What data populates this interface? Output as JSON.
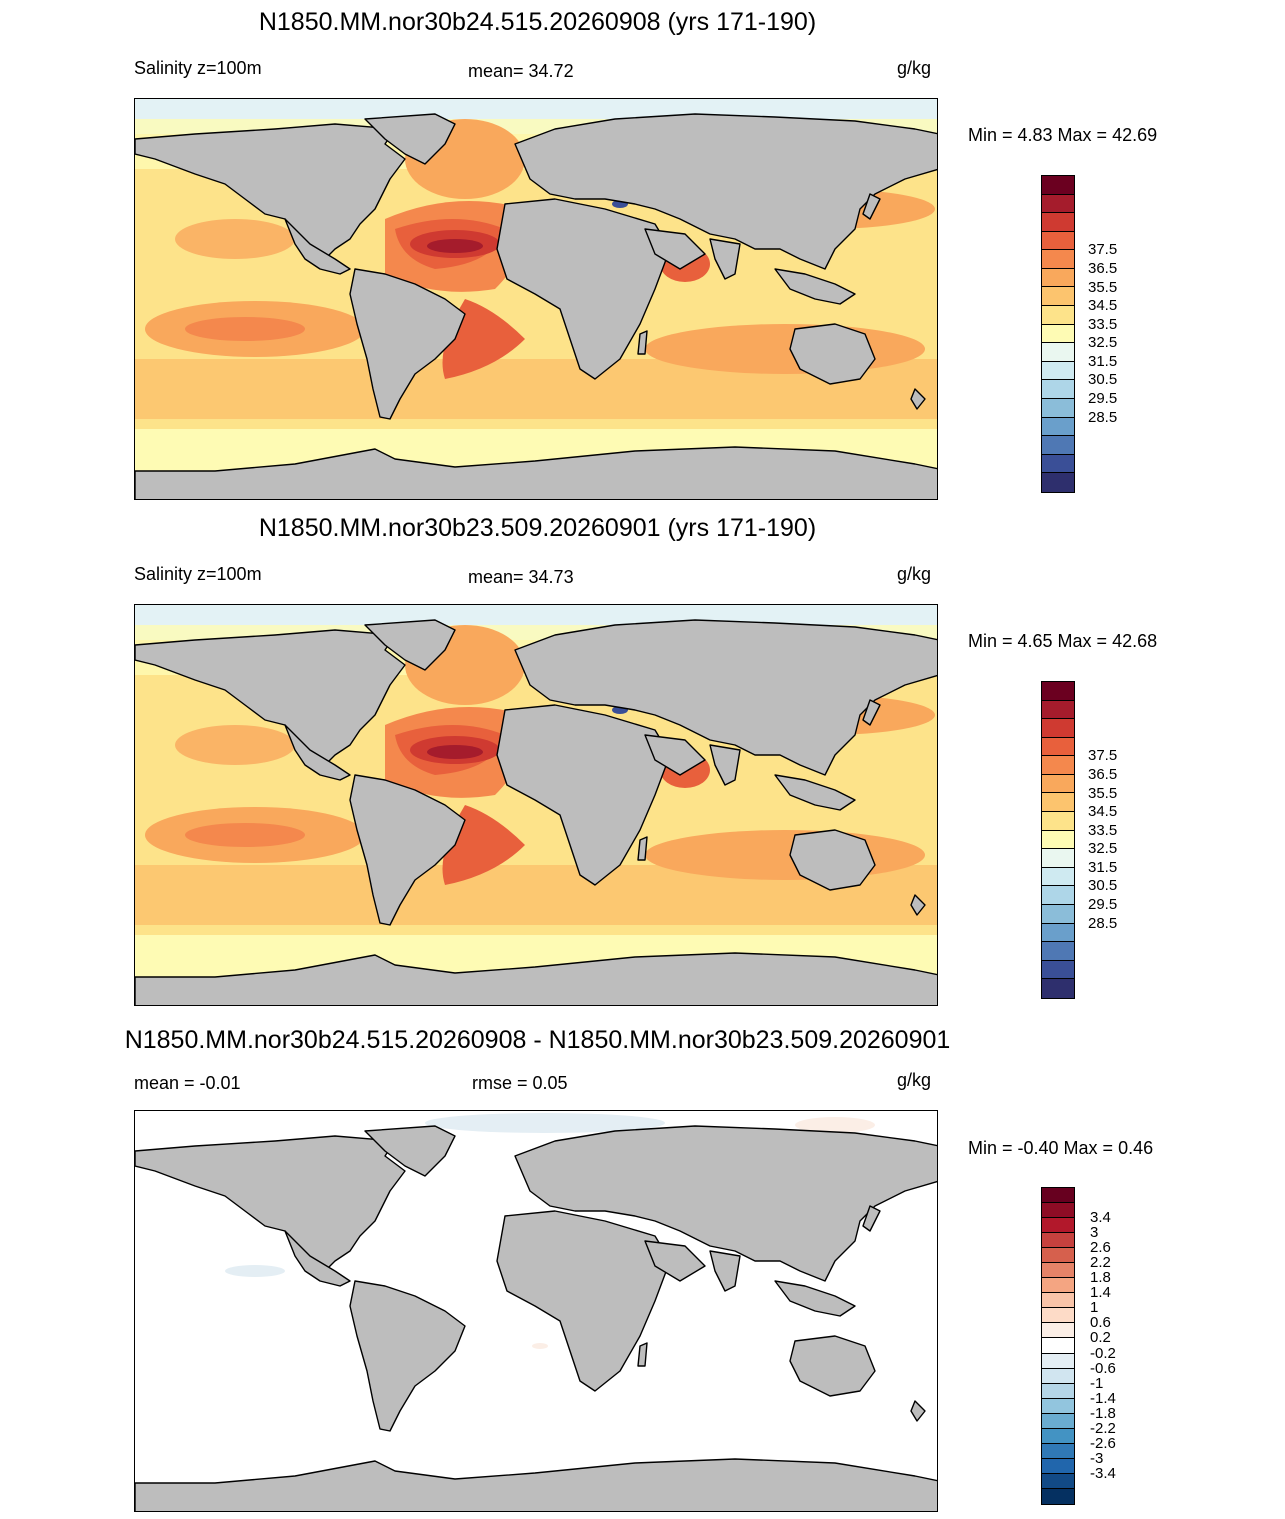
{
  "panels": [
    {
      "title": "N1850.MM.nor30b24.515.20260908 (yrs 171-190)",
      "left_label": "Salinity z=100m",
      "center_label": "mean=  34.72",
      "units": "g/kg",
      "minmax": "Min =   4.83 Max =  42.69",
      "colorbar": {
        "colors": [
          "#6b0020",
          "#a51c2c",
          "#cf3a31",
          "#e8603c",
          "#f4884d",
          "#f9a85c",
          "#fcc46e",
          "#fde38a",
          "#fefbb4",
          "#eaf7f0",
          "#cfeaf1",
          "#aed6e8",
          "#8bbdd9",
          "#6a9fcb",
          "#4f78b4",
          "#3a4f97",
          "#2e2f6d"
        ],
        "labels": [
          "37.5",
          "36.5",
          "35.5",
          "34.5",
          "33.5",
          "32.5",
          "31.5",
          "30.5",
          "29.5",
          "28.5"
        ]
      }
    },
    {
      "title": "N1850.MM.nor30b23.509.20260901 (yrs 171-190)",
      "left_label": "Salinity z=100m",
      "center_label": "mean=  34.73",
      "units": "g/kg",
      "minmax": "Min =   4.65 Max =  42.68",
      "colorbar": {
        "colors": [
          "#6b0020",
          "#a51c2c",
          "#cf3a31",
          "#e8603c",
          "#f4884d",
          "#f9a85c",
          "#fcc46e",
          "#fde38a",
          "#fefbb4",
          "#eaf7f0",
          "#cfeaf1",
          "#aed6e8",
          "#8bbdd9",
          "#6a9fcb",
          "#4f78b4",
          "#3a4f97",
          "#2e2f6d"
        ],
        "labels": [
          "37.5",
          "36.5",
          "35.5",
          "34.5",
          "33.5",
          "32.5",
          "31.5",
          "30.5",
          "29.5",
          "28.5"
        ]
      }
    },
    {
      "title": "N1850.MM.nor30b24.515.20260908 - N1850.MM.nor30b23.509.20260901",
      "left_label": "mean =  -0.01",
      "center_label": "rmse =   0.05",
      "units": "g/kg",
      "minmax": "Min =  -0.40 Max =   0.46",
      "colorbar": {
        "colors": [
          "#67001f",
          "#8e0c25",
          "#b2182b",
          "#c6413e",
          "#d6604d",
          "#e58368",
          "#f4a582",
          "#f9c4a9",
          "#fddbc7",
          "#fbeee6",
          "#ffffff",
          "#e4eef4",
          "#d1e5f0",
          "#b4d5e7",
          "#92c5de",
          "#6aacd0",
          "#4393c3",
          "#3079b6",
          "#2166ac",
          "#124a86",
          "#053061"
        ],
        "labels": [
          "3.4",
          "3",
          "2.6",
          "2.2",
          "1.8",
          "1.4",
          "1",
          "0.6",
          "0.2",
          "-0.2",
          "-0.6",
          "-1",
          "-1.4",
          "-1.8",
          "-2.2",
          "-2.6",
          "-3",
          "-3.4"
        ]
      }
    }
  ],
  "colors": {
    "land": "#bdbdbd",
    "coast": "#000000"
  }
}
